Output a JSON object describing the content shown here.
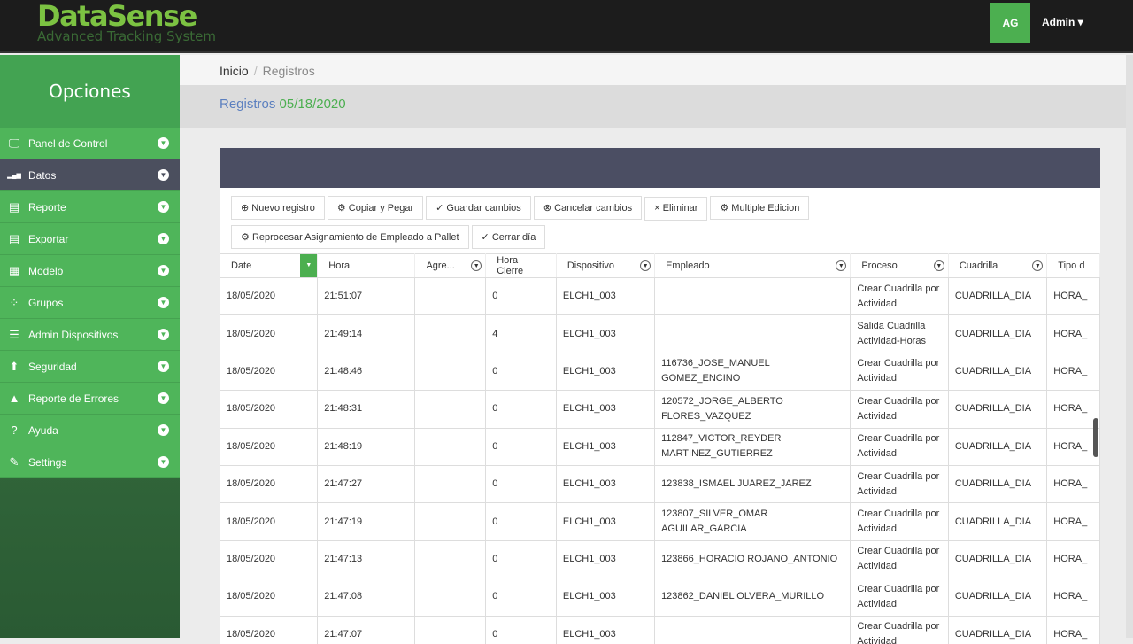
{
  "header": {
    "logo": "DataSense",
    "tagline": "Advanced Tracking System",
    "avatar": "AG",
    "user": "Admin"
  },
  "sidebar": {
    "title": "Opciones",
    "items": [
      {
        "label": "Panel de Control",
        "icon": "monitor-icon"
      },
      {
        "label": "Datos",
        "icon": "signal-icon",
        "active": true
      },
      {
        "label": "Reporte",
        "icon": "report-icon"
      },
      {
        "label": "Exportar",
        "icon": "export-icon"
      },
      {
        "label": "Modelo",
        "icon": "table-icon"
      },
      {
        "label": "Grupos",
        "icon": "spinner-icon"
      },
      {
        "label": "Admin Dispositivos",
        "icon": "list-icon"
      },
      {
        "label": "Seguridad",
        "icon": "security-icon"
      },
      {
        "label": "Reporte de Errores",
        "icon": "warning-icon"
      },
      {
        "label": "Ayuda",
        "icon": "help-icon"
      },
      {
        "label": "Settings",
        "icon": "wrench-icon"
      }
    ]
  },
  "breadcrumb": {
    "home": "Inicio",
    "current": "Registros"
  },
  "page": {
    "title": "Registros",
    "date": "05/18/2020"
  },
  "toolbar": [
    {
      "label": "Nuevo registro",
      "icon": "⊕"
    },
    {
      "label": "Copiar y Pegar",
      "icon": "⚙"
    },
    {
      "label": "Guardar cambios",
      "icon": "✓"
    },
    {
      "label": "Cancelar cambios",
      "icon": "⊗"
    },
    {
      "label": "Eliminar",
      "icon": "×"
    },
    {
      "label": "Multiple Edicion",
      "icon": "⚙"
    },
    {
      "label": "Reprocesar Asignamiento de Empleado a Pallet",
      "icon": "⚙"
    },
    {
      "label": "Cerrar día",
      "icon": "✓"
    }
  ],
  "columns": [
    "Date",
    "Hora",
    "Agre...",
    "Hora Cierre",
    "Dispositivo",
    "Empleado",
    "Proceso",
    "Cuadrilla",
    "Tipo d"
  ],
  "rows": [
    [
      "18/05/2020",
      "21:51:07",
      "",
      "0",
      "ELCH1_003",
      "",
      "Crear Cuadrilla por Actividad",
      "CUADRILLA_DIA",
      "HORA_"
    ],
    [
      "18/05/2020",
      "21:49:14",
      "",
      "4",
      "ELCH1_003",
      "",
      "Salida Cuadrilla Actividad-Horas",
      "CUADRILLA_DIA",
      "HORA_"
    ],
    [
      "18/05/2020",
      "21:48:46",
      "",
      "0",
      "ELCH1_003",
      "116736_JOSE_MANUEL GOMEZ_ENCINO",
      "Crear Cuadrilla por Actividad",
      "CUADRILLA_DIA",
      "HORA_"
    ],
    [
      "18/05/2020",
      "21:48:31",
      "",
      "0",
      "ELCH1_003",
      "120572_JORGE_ALBERTO FLORES_VAZQUEZ",
      "Crear Cuadrilla por Actividad",
      "CUADRILLA_DIA",
      "HORA_"
    ],
    [
      "18/05/2020",
      "21:48:19",
      "",
      "0",
      "ELCH1_003",
      "112847_VICTOR_REYDER MARTINEZ_GUTIERREZ",
      "Crear Cuadrilla por Actividad",
      "CUADRILLA_DIA",
      "HORA_"
    ],
    [
      "18/05/2020",
      "21:47:27",
      "",
      "0",
      "ELCH1_003",
      "123838_ISMAEL JUAREZ_JAREZ",
      "Crear Cuadrilla por Actividad",
      "CUADRILLA_DIA",
      "HORA_"
    ],
    [
      "18/05/2020",
      "21:47:19",
      "",
      "0",
      "ELCH1_003",
      "123807_SILVER_OMAR AGUILAR_GARCIA",
      "Crear Cuadrilla por Actividad",
      "CUADRILLA_DIA",
      "HORA_"
    ],
    [
      "18/05/2020",
      "21:47:13",
      "",
      "0",
      "ELCH1_003",
      "123866_HORACIO ROJANO_ANTONIO",
      "Crear Cuadrilla por Actividad",
      "CUADRILLA_DIA",
      "HORA_"
    ],
    [
      "18/05/2020",
      "21:47:08",
      "",
      "0",
      "ELCH1_003",
      "123862_DANIEL OLVERA_MURILLO",
      "Crear Cuadrilla por Actividad",
      "CUADRILLA_DIA",
      "HORA_"
    ],
    [
      "18/05/2020",
      "21:47:07",
      "",
      "0",
      "ELCH1_003",
      "",
      "Crear Cuadrilla por Actividad",
      "CUADRILLA_DIA",
      "HORA_"
    ]
  ]
}
